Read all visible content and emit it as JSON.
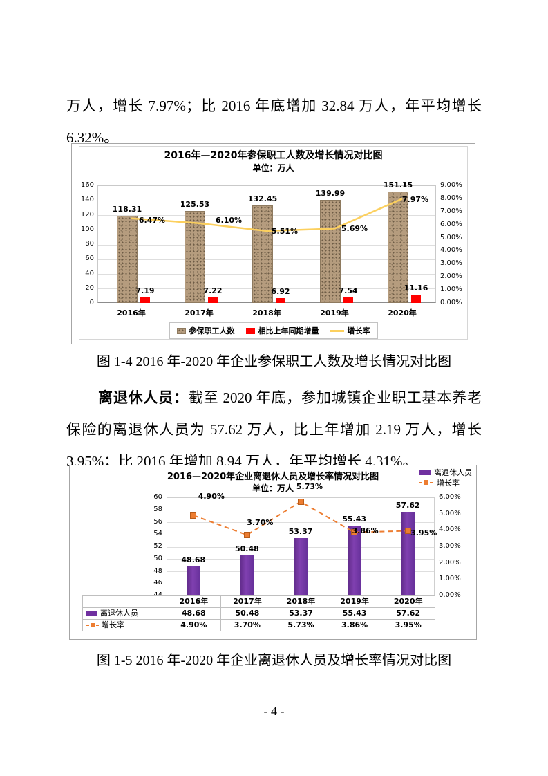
{
  "page": {
    "number_label": "- 4 -"
  },
  "paragraph1": {
    "line1": "万人，增长 7.97%；比 2016 年底增加 32.84 万人，年平均增长",
    "line2": "6.32%。"
  },
  "figure1": {
    "caption": "图 1-4  2016 年-2020 年企业参保职工人数及增长情况对比图"
  },
  "paragraph2": {
    "lead": "离退休人员：",
    "line1_rest": "截至 2020 年底，参加城镇企业职工基本养老",
    "line2": "保险的离退休人员为 57.62 万人，比上年增加 2.19 万人，增长",
    "line3": "3.95%；比 2016 年增加 8.94 万人，年平均增长 4.31%。"
  },
  "figure2": {
    "caption": "图 1-5  2016 年-2020 年企业离退休人员及增长率情况对比图"
  },
  "chart_data": [
    {
      "type": "bar+line",
      "title": "2016年—2020年参保职工人数及增长情况对比图",
      "unit": "单位：万人",
      "categories": [
        "2016年",
        "2017年",
        "2018年",
        "2019年",
        "2020年"
      ],
      "series": [
        {
          "name": "参保职工人数",
          "type": "bar",
          "axis": "left",
          "color": "#b59c7e",
          "values": [
            118.31,
            125.53,
            132.45,
            139.99,
            151.15
          ],
          "labels": [
            "118.31",
            "125.53",
            "132.45",
            "139.99",
            "151.15"
          ]
        },
        {
          "name": "相比上年同期增量",
          "type": "bar",
          "axis": "left",
          "color": "#ff0000",
          "values": [
            7.19,
            7.22,
            6.92,
            7.54,
            11.16
          ],
          "labels": [
            "7.19",
            "7.22",
            "6.92",
            "7.54",
            "11.16"
          ]
        },
        {
          "name": "增长率",
          "type": "line",
          "axis": "right",
          "color": "#fcd05e",
          "values": [
            6.47,
            6.1,
            5.51,
            5.69,
            7.97
          ],
          "labels": [
            "6.47%",
            "6.10%",
            "5.51%",
            "5.69%",
            "7.97%"
          ]
        }
      ],
      "left_axis": {
        "min": 0,
        "max": 160,
        "ticks": [
          "0",
          "20",
          "40",
          "60",
          "80",
          "100",
          "120",
          "140",
          "160"
        ]
      },
      "right_axis": {
        "min": 0,
        "max": 9,
        "ticks": [
          "0.00%",
          "1.00%",
          "2.00%",
          "3.00%",
          "4.00%",
          "5.00%",
          "6.00%",
          "7.00%",
          "8.00%",
          "9.00%"
        ]
      },
      "legend": [
        "参保职工人数",
        "相比上年同期增量",
        "增长率"
      ]
    },
    {
      "type": "bar+line",
      "title": "2016—2020年企业离退休人员及增长率情况对比图",
      "unit": "单位：万人",
      "categories": [
        "2016年",
        "2017年",
        "2018年",
        "2019年",
        "2020年"
      ],
      "series": [
        {
          "name": "离退休人员",
          "type": "bar",
          "axis": "left",
          "color": "#7030a0",
          "values": [
            48.68,
            50.48,
            53.37,
            55.43,
            57.62
          ],
          "labels": [
            "48.68",
            "50.48",
            "53.37",
            "55.43",
            "57.62"
          ]
        },
        {
          "name": "增长率",
          "type": "line",
          "axis": "right",
          "color": "#ed7d31",
          "dashed": true,
          "values": [
            4.9,
            3.7,
            5.73,
            3.86,
            3.95
          ],
          "labels": [
            "4.90%",
            "3.70%",
            "5.73%",
            "3.86%",
            "3.95%"
          ]
        }
      ],
      "left_axis": {
        "min": 44,
        "max": 60,
        "ticks": [
          "44",
          "46",
          "48",
          "50",
          "52",
          "54",
          "56",
          "58",
          "60"
        ]
      },
      "right_axis": {
        "min": 0,
        "max": 6,
        "ticks": [
          "0.00%",
          "1.00%",
          "2.00%",
          "3.00%",
          "4.00%",
          "5.00%",
          "6.00%"
        ]
      },
      "legend": [
        "离退休人员",
        "增长率"
      ],
      "table": {
        "rows": [
          {
            "label": "离退休人员",
            "cells": [
              "48.68",
              "50.48",
              "53.37",
              "55.43",
              "57.62"
            ]
          },
          {
            "label": "增长率",
            "cells": [
              "4.90%",
              "3.70%",
              "5.73%",
              "3.86%",
              "3.95%"
            ]
          }
        ]
      }
    }
  ]
}
